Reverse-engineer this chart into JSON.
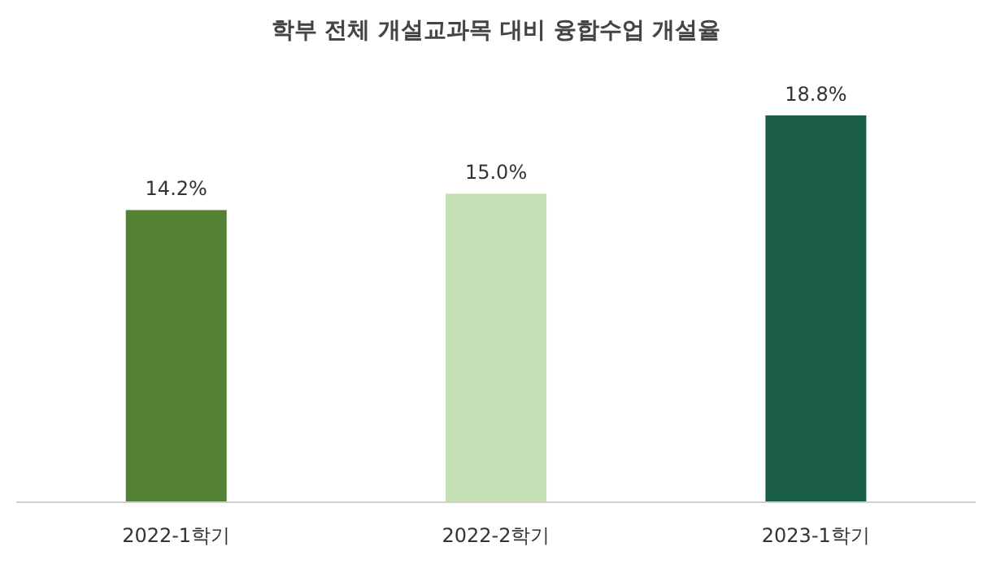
{
  "chart_data": {
    "type": "bar",
    "title": "학부 전체 개설교과목 대비 융합수업 개설율",
    "categories": [
      "2022-1학기",
      "2022-2학기",
      "2023-1학기"
    ],
    "values": [
      14.2,
      15.0,
      18.8
    ],
    "colors": [
      "#548235",
      "#c5e0b4",
      "#1a5e45"
    ],
    "value_labels": [
      "14.2%",
      "15.0%",
      "18.8%"
    ]
  }
}
